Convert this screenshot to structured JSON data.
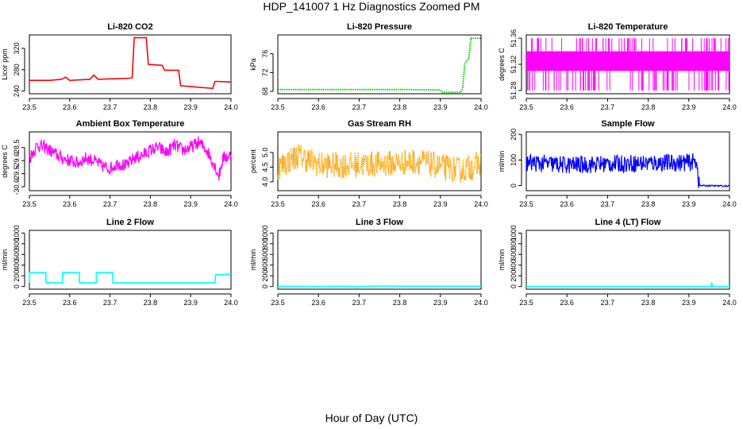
{
  "title": "HDP_141007  1 Hz Diagnostics Zoomed PM",
  "xlabel_global": "Hour of Day (UTC)",
  "chart_data": [
    {
      "type": "line",
      "title": "Li-820 CO2",
      "ylabel": "Licor ppm",
      "color": "#ff0000",
      "style": "line",
      "xlim": [
        23.5,
        24.0
      ],
      "ylim": [
        235,
        345
      ],
      "xticks": [
        "23.5",
        "23.6",
        "23.7",
        "23.8",
        "23.9",
        "24.0"
      ],
      "yticks": [
        "240",
        "280",
        "320"
      ],
      "x": [
        23.5,
        23.55,
        23.58,
        23.59,
        23.6,
        23.65,
        23.66,
        23.67,
        23.75,
        23.755,
        23.76,
        23.79,
        23.795,
        23.83,
        23.835,
        23.87,
        23.875,
        23.955,
        23.96,
        23.965,
        24.0
      ],
      "y": [
        260,
        260,
        262,
        266,
        260,
        262,
        270,
        262,
        264,
        265,
        340,
        340,
        290,
        288,
        279,
        279,
        250,
        245,
        258,
        258,
        257
      ]
    },
    {
      "type": "line",
      "title": "Li-820 Pressure",
      "ylabel": "kPa",
      "color": "#00cc00",
      "style": "dots",
      "xlim": [
        23.5,
        24.0
      ],
      "ylim": [
        67.5,
        80
      ],
      "xticks": [
        "23.5",
        "23.6",
        "23.7",
        "23.8",
        "23.9",
        "24.0"
      ],
      "yticks": [
        "68",
        "72",
        "76"
      ],
      "x": [
        23.5,
        23.6,
        23.7,
        23.8,
        23.9,
        23.905,
        23.91,
        23.95,
        23.955,
        23.96,
        23.97,
        23.975,
        24.0
      ],
      "y": [
        68.4,
        68.4,
        68.4,
        68.4,
        68.3,
        67.8,
        67.8,
        67.8,
        68.8,
        74,
        75,
        79.3,
        79.3
      ]
    },
    {
      "type": "line",
      "title": "Li-820 Temperature",
      "ylabel": "degrees C",
      "color": "#ff00ff",
      "style": "band",
      "xlim": [
        23.5,
        24.0
      ],
      "ylim": [
        51.275,
        51.365
      ],
      "xticks": [
        "23.5",
        "23.6",
        "23.7",
        "23.8",
        "23.9",
        "24.0"
      ],
      "yticks": [
        "51.28",
        "51.32",
        "51.36"
      ],
      "x": [
        23.5,
        24.0
      ],
      "y": [
        51.33,
        51.33
      ],
      "band_low": 51.31,
      "band_high": 51.34,
      "spike_low": 51.28,
      "spike_high": 51.36
    },
    {
      "type": "line",
      "title": "Ambient Box Temperature",
      "ylabel": "degrees C",
      "color": "#ff00ff",
      "style": "line",
      "xlim": [
        23.5,
        24.0
      ],
      "ylim": [
        -30.15,
        -27.9
      ],
      "xticks": [
        "23.5",
        "23.6",
        "23.7",
        "23.8",
        "23.9",
        "24.0"
      ],
      "yticks": [
        "-30.0",
        "-29.5",
        "-29.0",
        "-28.5"
      ],
      "x": [
        23.5,
        23.52,
        23.54,
        23.56,
        23.58,
        23.6,
        23.62,
        23.64,
        23.66,
        23.68,
        23.7,
        23.72,
        23.74,
        23.76,
        23.78,
        23.8,
        23.82,
        23.84,
        23.86,
        23.88,
        23.9,
        23.92,
        23.94,
        23.96,
        23.97,
        23.98,
        24.0
      ],
      "y": [
        -28.9,
        -28.4,
        -28.5,
        -28.7,
        -28.9,
        -29.0,
        -29.1,
        -28.9,
        -29.0,
        -29.2,
        -29.3,
        -29.1,
        -29.2,
        -28.9,
        -28.8,
        -28.6,
        -28.5,
        -28.7,
        -28.4,
        -28.6,
        -28.5,
        -28.3,
        -28.6,
        -29.2,
        -29.6,
        -28.9,
        -28.8
      ],
      "noise": 0.25
    },
    {
      "type": "line",
      "title": "Gas Stream RH",
      "ylabel": "percent",
      "color": "#ffa500",
      "style": "line",
      "xlim": [
        23.5,
        24.0
      ],
      "ylim": [
        3.7,
        5.7
      ],
      "xticks": [
        "23.5",
        "23.6",
        "23.7",
        "23.8",
        "23.9",
        "24.0"
      ],
      "yticks": [
        "4.0",
        "4.5",
        "5.0"
      ],
      "x": [
        23.5,
        23.55,
        23.6,
        23.65,
        23.7,
        23.75,
        23.8,
        23.85,
        23.9,
        23.95,
        24.0
      ],
      "y": [
        4.5,
        4.9,
        4.6,
        4.55,
        4.6,
        4.6,
        4.65,
        4.7,
        4.5,
        4.4,
        4.6
      ],
      "noise": 0.45
    },
    {
      "type": "line",
      "title": "Sample Flow",
      "ylabel": "ml/min",
      "color": "#0000ff",
      "style": "line",
      "xlim": [
        23.5,
        24.0
      ],
      "ylim": [
        -20,
        210
      ],
      "xticks": [
        "23.5",
        "23.6",
        "23.7",
        "23.8",
        "23.9",
        "24.0"
      ],
      "yticks": [
        "0",
        "100",
        "200"
      ],
      "x": [
        23.5,
        23.6,
        23.7,
        23.8,
        23.9,
        23.92,
        23.925,
        24.0
      ],
      "y": [
        90,
        80,
        85,
        88,
        90,
        95,
        0,
        -2
      ],
      "noise": 35
    },
    {
      "type": "line",
      "title": "Line 2 Flow",
      "ylabel": "ml/min",
      "color": "#00ffff",
      "style": "line",
      "xlim": [
        23.5,
        24.0
      ],
      "ylim": [
        -50,
        1050
      ],
      "xticks": [
        "23.5",
        "23.6",
        "23.7",
        "23.8",
        "23.9",
        "24.0"
      ],
      "yticks": [
        "0",
        "200",
        "400",
        "600",
        "800",
        "1000"
      ],
      "x": [
        23.5,
        23.5,
        23.541,
        23.541,
        23.582,
        23.582,
        23.624,
        23.624,
        23.666,
        23.666,
        23.707,
        23.707,
        23.96,
        23.962,
        24.0
      ],
      "y": [
        70,
        260,
        260,
        70,
        70,
        260,
        260,
        70,
        70,
        260,
        260,
        70,
        70,
        220,
        230
      ]
    },
    {
      "type": "line",
      "title": "Line 3 Flow",
      "ylabel": "ml/min",
      "color": "#00ffff",
      "style": "line",
      "xlim": [
        23.5,
        24.0
      ],
      "ylim": [
        -50,
        1050
      ],
      "xticks": [
        "23.5",
        "23.6",
        "23.7",
        "23.8",
        "23.9",
        "24.0"
      ],
      "yticks": [
        "0",
        "200",
        "400",
        "600",
        "800",
        "1000"
      ],
      "x": [
        23.5,
        23.55,
        23.6,
        23.65,
        23.7,
        23.75,
        23.8,
        23.85,
        23.9,
        23.95,
        24.0
      ],
      "y": [
        0,
        5,
        0,
        5,
        0,
        10,
        5,
        5,
        5,
        5,
        5
      ]
    },
    {
      "type": "line",
      "title": "Line 4 (LT) Flow",
      "ylabel": "ml/min",
      "color": "#00ffff",
      "style": "line",
      "xlim": [
        23.5,
        24.0
      ],
      "ylim": [
        -50,
        1050
      ],
      "xticks": [
        "23.5",
        "23.6",
        "23.7",
        "23.8",
        "23.9",
        "24.0"
      ],
      "yticks": [
        "0",
        "200",
        "400",
        "600",
        "800",
        "1000"
      ],
      "x": [
        23.5,
        23.955,
        23.956,
        23.958,
        23.96,
        24.0
      ],
      "y": [
        0,
        0,
        80,
        0,
        0,
        0
      ]
    }
  ]
}
